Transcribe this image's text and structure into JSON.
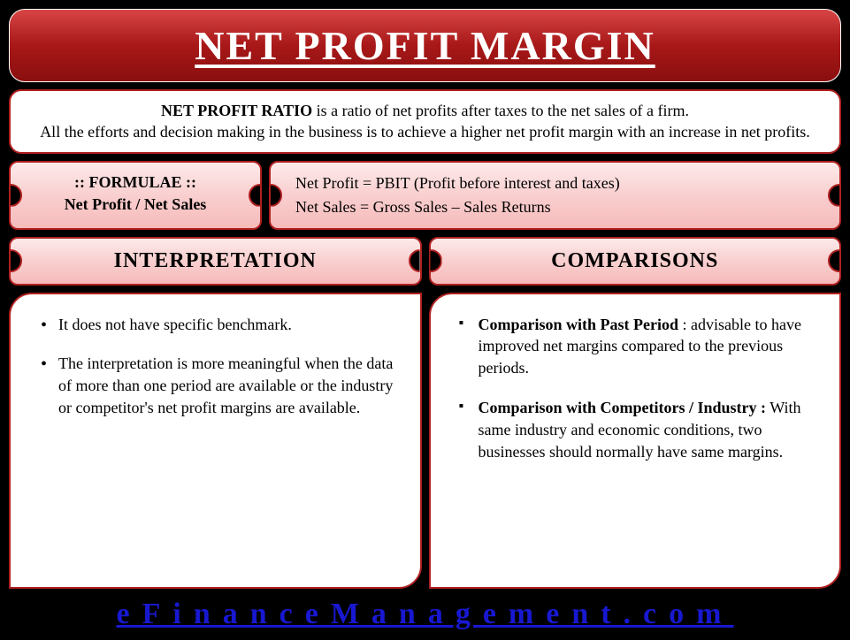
{
  "colors": {
    "title_gradient_start": "#d84545",
    "title_gradient_end": "#8a0e0e",
    "border": "#b02020",
    "ticket_gradient_start": "#fdeaea",
    "ticket_gradient_end": "#f6baba",
    "background": "#000000",
    "footer_link": "#1818d0"
  },
  "title": "NET PROFIT MARGIN",
  "description": {
    "bold_lead": "NET PROFIT RATIO",
    "line1_rest": " is a ratio of net profits after taxes to the net sales of a firm.",
    "line2": "All the efforts and decision making in the business is to achieve a higher net profit margin with an increase in net profits."
  },
  "formula": {
    "header": ":: FORMULAE ::",
    "expression": "Net Profit / Net Sales",
    "definitions": {
      "net_profit": "Net Profit = PBIT (Profit before interest and taxes)",
      "net_sales": "Net Sales = Gross Sales – Sales Returns"
    }
  },
  "sections": {
    "interpretation": {
      "heading": "INTERPRETATION",
      "items": [
        "It does not have specific benchmark.",
        "The interpretation is more meaningful when the data of more than one period are available or the industry or competitor's net profit margins are available."
      ]
    },
    "comparisons": {
      "heading": "COMPARISONS",
      "items": [
        {
          "bold": "Comparison with Past Period",
          "rest": " : advisable to have improved net margins compared to the previous periods."
        },
        {
          "bold": "Comparison with Competitors / Industry :",
          "rest": " With same industry and economic conditions, two businesses should normally have same margins."
        }
      ]
    }
  },
  "footer": "eFinanceManagement.com"
}
